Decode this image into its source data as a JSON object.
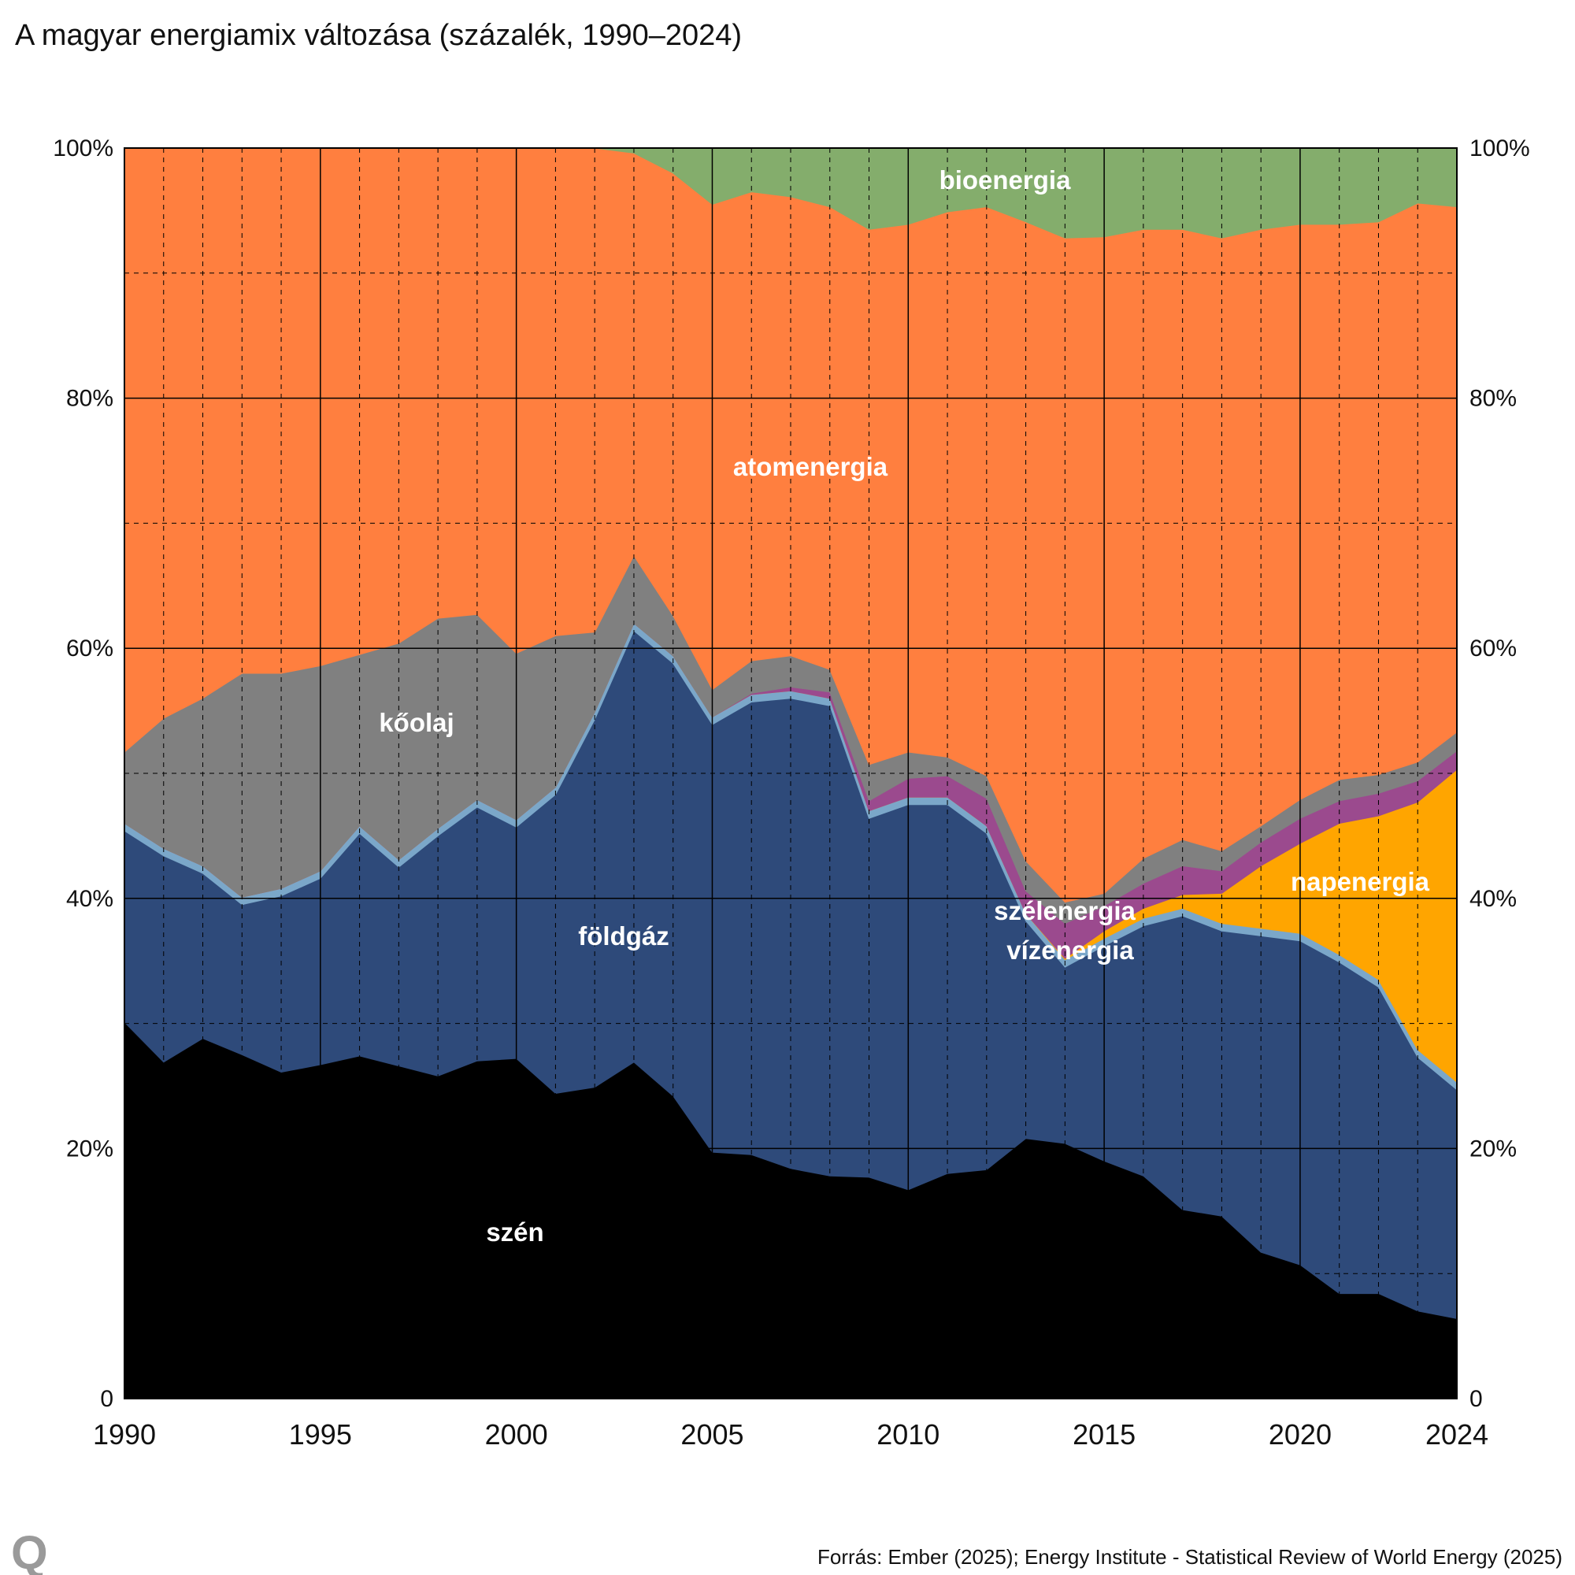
{
  "title": "A magyar energiamix változása (százalék, 1990–2024)",
  "source": "Forrás: Ember (2025); Energy Institute - Statistical Review of World Energy (2025)",
  "logo": "Q",
  "chart_data": {
    "type": "area",
    "stacked": true,
    "normalized_percent": true,
    "title": "A magyar energiamix változása (százalék, 1990–2024)",
    "x": [
      1990,
      1991,
      1992,
      1993,
      1994,
      1995,
      1996,
      1997,
      1998,
      1999,
      2000,
      2001,
      2002,
      2003,
      2004,
      2005,
      2006,
      2007,
      2008,
      2009,
      2010,
      2011,
      2012,
      2013,
      2014,
      2015,
      2016,
      2017,
      2018,
      2019,
      2020,
      2021,
      2022,
      2023,
      2024
    ],
    "xlim": [
      1990,
      2024
    ],
    "x_tick_labels": [
      "1990",
      "1995",
      "2000",
      "2005",
      "2010",
      "2015",
      "2020",
      "2024"
    ],
    "ylim": [
      0,
      100
    ],
    "y_tick_labels": [
      "0",
      "20%",
      "40%",
      "60%",
      "80%",
      "100%"
    ],
    "grid": true,
    "legend": "inline labels",
    "series": [
      {
        "name": "szén",
        "color": "#000000",
        "values": [
          30.1,
          26.9,
          28.8,
          27.5,
          26.1,
          26.7,
          27.4,
          26.6,
          25.8,
          27.0,
          27.2,
          24.4,
          24.9,
          26.9,
          24.2,
          19.7,
          19.5,
          18.4,
          17.8,
          17.7,
          16.7,
          18.0,
          18.3,
          20.8,
          20.4,
          19.0,
          17.8,
          15.1,
          14.6,
          11.7,
          10.7,
          8.4,
          8.4,
          7.0,
          6.4
        ]
      },
      {
        "name": "földgáz",
        "color": "#2e4a7a",
        "values": [
          15.3,
          16.5,
          13.2,
          12.0,
          14.1,
          14.9,
          17.8,
          15.9,
          19.2,
          20.3,
          18.5,
          23.9,
          29.4,
          34.5,
          34.6,
          34.2,
          36.2,
          37.6,
          37.6,
          28.7,
          30.8,
          29.5,
          26.9,
          17.4,
          14.1,
          17.2,
          20.0,
          23.5,
          22.8,
          25.3,
          25.9,
          26.5,
          24.5,
          20.3,
          18.3
        ]
      },
      {
        "name": "vízenergia",
        "color": "#7ba7c9",
        "values": [
          0.6,
          0.6,
          0.6,
          0.6,
          0.6,
          0.6,
          0.6,
          0.6,
          0.6,
          0.6,
          0.6,
          0.6,
          0.6,
          0.6,
          0.6,
          0.6,
          0.6,
          0.6,
          0.6,
          0.6,
          0.6,
          0.6,
          0.6,
          0.6,
          0.6,
          0.6,
          0.6,
          0.6,
          0.6,
          0.6,
          0.6,
          0.6,
          0.6,
          0.6,
          0.6
        ]
      },
      {
        "name": "napenergia",
        "color": "#ffa500",
        "values": [
          0,
          0,
          0,
          0,
          0,
          0,
          0,
          0,
          0,
          0,
          0,
          0,
          0,
          0,
          0,
          0,
          0,
          0,
          0,
          0,
          0,
          0,
          0,
          0,
          0.1,
          0.6,
          0.8,
          1.1,
          2.4,
          5.0,
          7.2,
          10.5,
          13.1,
          19.8,
          25.0
        ]
      },
      {
        "name": "szélenergia",
        "color": "#9b4a8e",
        "values": [
          0,
          0,
          0,
          0,
          0,
          0,
          0,
          0,
          0,
          0,
          0,
          0,
          0,
          0,
          0,
          0,
          0.1,
          0.3,
          0.5,
          0.8,
          1.5,
          1.7,
          2.2,
          1.8,
          2.8,
          2.0,
          2.0,
          2.3,
          1.8,
          1.9,
          2.0,
          1.8,
          1.8,
          1.7,
          1.5
        ]
      },
      {
        "name": "kőolaj",
        "color": "#808080",
        "values": [
          5.7,
          10.4,
          13.4,
          17.9,
          17.2,
          16.4,
          13.7,
          17.3,
          16.8,
          14.8,
          13.3,
          12.1,
          6.4,
          5.4,
          3.2,
          2.2,
          2.6,
          2.5,
          1.8,
          2.9,
          2.1,
          1.5,
          1.8,
          2.4,
          1.7,
          1.0,
          2.0,
          2.1,
          1.6,
          1.3,
          1.5,
          1.7,
          1.5,
          1.5,
          1.5
        ]
      },
      {
        "name": "atomenergia",
        "color": "#ff7f3f",
        "values": [
          48.3,
          45.6,
          44.0,
          42.0,
          42.0,
          41.4,
          40.5,
          39.6,
          37.6,
          37.3,
          40.4,
          39.0,
          38.7,
          32.2,
          35.4,
          38.8,
          37.5,
          36.7,
          37.0,
          42.8,
          42.2,
          43.6,
          45.5,
          51.1,
          53.1,
          52.5,
          50.3,
          48.8,
          49.0,
          47.7,
          46.0,
          44.4,
          44.2,
          44.7,
          42.0
        ]
      },
      {
        "name": "bioenergia",
        "color": "#84ad6c",
        "values": [
          0,
          0,
          0,
          0,
          0,
          0,
          0,
          0,
          0,
          0,
          0,
          0,
          0,
          0.4,
          2.0,
          4.5,
          3.5,
          3.9,
          4.7,
          6.5,
          6.1,
          5.1,
          4.7,
          5.9,
          7.2,
          7.1,
          6.5,
          6.5,
          7.2,
          6.5,
          6.1,
          6.1,
          5.9,
          4.4,
          4.7
        ]
      }
    ]
  }
}
